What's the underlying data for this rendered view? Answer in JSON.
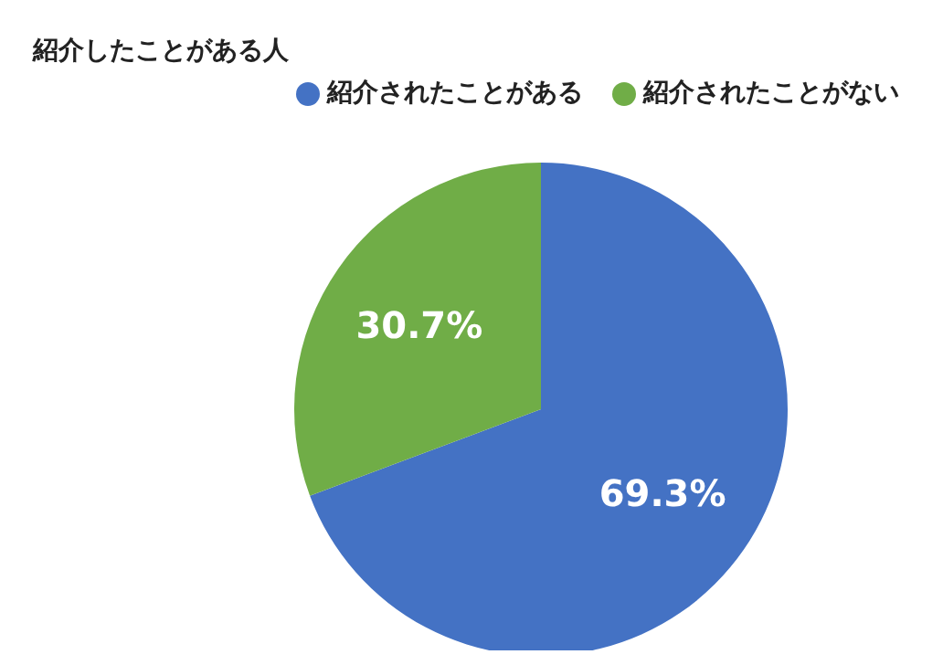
{
  "chart_data": {
    "type": "pie",
    "title": "紹介したことがある人",
    "categories": [
      "紹介されたことがある",
      "紹介されたことがない"
    ],
    "values": [
      69.3,
      30.7
    ],
    "colors": [
      "#4472c4",
      "#70ad47"
    ],
    "value_labels": [
      "69.3%",
      "30.7%"
    ],
    "legend": "top"
  }
}
